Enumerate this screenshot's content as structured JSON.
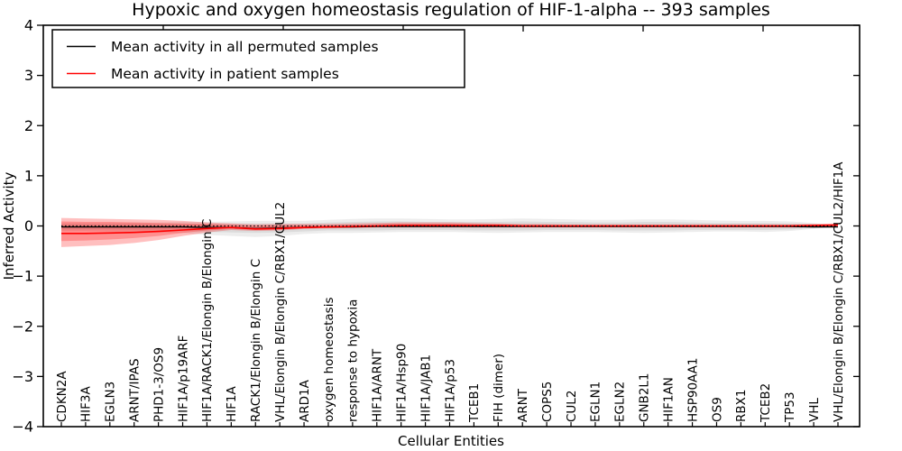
{
  "figure": {
    "title": "Hypoxic and oxygen homeostasis regulation of HIF-1-alpha -- 393 samples",
    "xlabel": "Cellular Entities",
    "ylabel": "Inferred Activity"
  },
  "legend": {
    "items": [
      {
        "label": "Mean activity in all permuted samples",
        "color": "#000000"
      },
      {
        "label": "Mean activity in patient samples",
        "color": "#ff0000"
      }
    ]
  },
  "chart_data": {
    "type": "line",
    "title": "Hypoxic and oxygen homeostasis regulation of HIF-1-alpha -- 393 samples",
    "xlabel": "Cellular Entities",
    "ylabel": "Inferred Activity",
    "ylim": [
      -4,
      4
    ],
    "yticks": [
      4,
      3,
      2,
      1,
      0,
      -1,
      -2,
      -3,
      -4
    ],
    "ytick_labels": [
      "4",
      "3",
      "2",
      "1",
      "0",
      "−1",
      "−2",
      "−3",
      "−4"
    ],
    "grid": false,
    "legend_position": "upper left",
    "sample_count": "393 samples",
    "categories": [
      "CDKN2A",
      "HIF3A",
      "EGLN3",
      "ARNT/IPAS",
      "PHD1-3/OS9",
      "HIF1A/p19ARF",
      "HIF1A/RACK1/Elongin B/Elongin C",
      "HIF1A",
      "RACK1/Elongin B/Elongin C",
      "VHL/Elongin B/Elongin C/RBX1/CUL2",
      "ARD1A",
      "oxygen homeostasis",
      "response to hypoxia",
      "HIF1A/ARNT",
      "HIF1A/Hsp90",
      "HIF1A/JAB1",
      "HIF1A/p53",
      "TCEB1",
      "FIH (dimer)",
      "ARNT",
      "COPS5",
      "CUL2",
      "EGLN1",
      "EGLN2",
      "GNB2L1",
      "HIF1AN",
      "HSP90AA1",
      "OS9",
      "RBX1",
      "TCEB2",
      "TP53",
      "VHL",
      "VHL/Elongin B/Elongin C/RBX1/CUL2/HIF1A"
    ],
    "series": [
      {
        "name": "Mean activity in all permuted samples",
        "color": "#000000",
        "style": "solid",
        "width": 1.4,
        "values": [
          -0.02,
          -0.02,
          -0.02,
          -0.02,
          -0.02,
          -0.02,
          -0.03,
          -0.03,
          -0.05,
          -0.04,
          -0.03,
          -0.02,
          -0.02,
          -0.01,
          -0.01,
          -0.01,
          -0.01,
          -0.01,
          -0.01,
          -0.01,
          -0.01,
          -0.01,
          -0.01,
          -0.01,
          -0.01,
          -0.01,
          -0.01,
          -0.01,
          -0.01,
          -0.01,
          -0.01,
          -0.02,
          -0.02
        ]
      },
      {
        "name": "Mean activity in patient samples",
        "color": "#ff0000",
        "style": "solid",
        "width": 1.6,
        "values": [
          -0.15,
          -0.15,
          -0.14,
          -0.13,
          -0.11,
          -0.08,
          -0.05,
          -0.03,
          -0.06,
          -0.05,
          -0.03,
          -0.02,
          -0.01,
          0.0,
          0.01,
          0.01,
          0.01,
          0.01,
          0.01,
          0.0,
          0.0,
          0.0,
          0.0,
          0.0,
          0.0,
          0.0,
          0.0,
          0.0,
          0.0,
          0.0,
          0.0,
          0.01,
          0.02
        ]
      },
      {
        "name": "zero reference",
        "color": "#000000",
        "style": "dotted",
        "width": 1.2,
        "constant": 0
      }
    ],
    "bands": [
      {
        "name": "permuted-range-outer",
        "color": "#000000",
        "opacity": 0.07,
        "upper": [
          0.06,
          0.06,
          0.06,
          0.07,
          0.07,
          0.08,
          0.08,
          0.09,
          0.1,
          0.1,
          0.1,
          0.12,
          0.14,
          0.15,
          0.15,
          0.14,
          0.13,
          0.13,
          0.14,
          0.15,
          0.14,
          0.13,
          0.12,
          0.12,
          0.13,
          0.13,
          0.12,
          0.11,
          0.1,
          0.1,
          0.09,
          0.06,
          0.01
        ],
        "lower": [
          -0.1,
          -0.1,
          -0.11,
          -0.12,
          -0.13,
          -0.14,
          -0.18,
          -0.2,
          -0.22,
          -0.2,
          -0.16,
          -0.14,
          -0.14,
          -0.13,
          -0.12,
          -0.12,
          -0.12,
          -0.13,
          -0.14,
          -0.13,
          -0.12,
          -0.12,
          -0.12,
          -0.13,
          -0.14,
          -0.13,
          -0.12,
          -0.11,
          -0.11,
          -0.12,
          -0.1,
          -0.06,
          -0.01
        ]
      },
      {
        "name": "permuted-range-inner",
        "color": "#000000",
        "opacity": 0.07,
        "upper": [
          0.03,
          0.03,
          0.03,
          0.04,
          0.04,
          0.04,
          0.04,
          0.05,
          0.05,
          0.05,
          0.05,
          0.07,
          0.08,
          0.09,
          0.09,
          0.08,
          0.08,
          0.08,
          0.08,
          0.09,
          0.08,
          0.08,
          0.07,
          0.07,
          0.08,
          0.08,
          0.07,
          0.06,
          0.06,
          0.06,
          0.05,
          0.03,
          0.0
        ],
        "lower": [
          -0.07,
          -0.07,
          -0.07,
          -0.08,
          -0.09,
          -0.09,
          -0.12,
          -0.13,
          -0.14,
          -0.13,
          -0.11,
          -0.09,
          -0.09,
          -0.09,
          -0.08,
          -0.08,
          -0.08,
          -0.09,
          -0.09,
          -0.09,
          -0.08,
          -0.08,
          -0.08,
          -0.09,
          -0.09,
          -0.09,
          -0.08,
          -0.08,
          -0.08,
          -0.08,
          -0.07,
          -0.04,
          -0.01
        ]
      },
      {
        "name": "patient-range-outer",
        "color": "#ff0000",
        "opacity": 0.25,
        "upper": [
          0.16,
          0.15,
          0.14,
          0.13,
          0.12,
          0.1,
          0.07,
          0.05,
          0.03,
          0.04,
          0.04,
          0.04,
          0.05,
          0.06,
          0.07,
          0.07,
          0.07,
          0.06,
          0.05,
          0.04,
          0.04,
          0.03,
          0.03,
          0.03,
          0.03,
          0.03,
          0.03,
          0.03,
          0.03,
          0.03,
          0.03,
          0.04,
          0.05
        ],
        "lower": [
          -0.42,
          -0.4,
          -0.38,
          -0.34,
          -0.28,
          -0.2,
          -0.13,
          -0.08,
          -0.1,
          -0.09,
          -0.06,
          -0.05,
          -0.04,
          -0.03,
          -0.03,
          -0.03,
          -0.03,
          -0.03,
          -0.03,
          -0.03,
          -0.03,
          -0.03,
          -0.03,
          -0.03,
          -0.03,
          -0.03,
          -0.03,
          -0.03,
          -0.03,
          -0.03,
          -0.03,
          -0.02,
          -0.01
        ],
        "lower_default": 0
      },
      {
        "name": "patient-range-inner",
        "color": "#ff0000",
        "opacity": 0.25,
        "upper": [
          0.09,
          0.08,
          0.08,
          0.07,
          0.06,
          0.05,
          0.04,
          0.02,
          0.0,
          0.01,
          0.01,
          0.01,
          0.02,
          0.03,
          0.04,
          0.04,
          0.04,
          0.03,
          0.03,
          0.02,
          0.02,
          0.02,
          0.02,
          0.02,
          0.02,
          0.02,
          0.02,
          0.02,
          0.02,
          0.02,
          0.02,
          0.02,
          0.03
        ],
        "lower": [
          -0.3,
          -0.29,
          -0.27,
          -0.24,
          -0.2,
          -0.14,
          -0.09,
          -0.06,
          -0.08,
          -0.07,
          -0.05,
          -0.04,
          -0.03,
          -0.02,
          -0.01,
          -0.01,
          -0.01,
          -0.01,
          -0.01,
          -0.02,
          -0.02,
          -0.02,
          -0.02,
          -0.02,
          -0.02,
          -0.02,
          -0.02,
          -0.02,
          -0.02,
          -0.02,
          -0.02,
          -0.01,
          0.0
        ]
      }
    ]
  }
}
